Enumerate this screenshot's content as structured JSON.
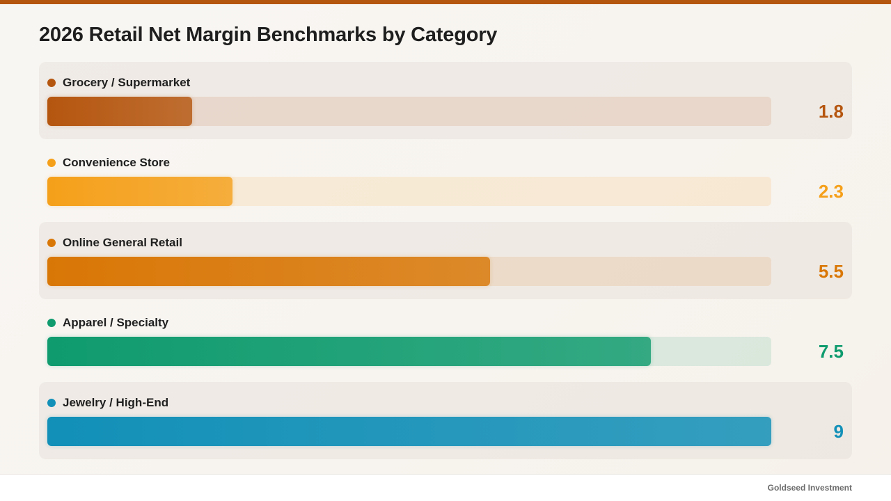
{
  "header": {
    "title": "2026 Retail Net Margin Benchmarks by Category",
    "accent_color": "#b5560f"
  },
  "chart_data": {
    "type": "bar",
    "orientation": "horizontal",
    "title": "2026 Retail Net Margin Benchmarks by Category",
    "categories": [
      "Grocery / Supermarket",
      "Convenience Store",
      "Online General Retail",
      "Apparel / Specialty",
      "Jewelry / High-End"
    ],
    "values": [
      1.8,
      2.3,
      5.5,
      7.5,
      9
    ],
    "value_labels": [
      "1.8",
      "2.3",
      "5.5",
      "7.5",
      "9"
    ],
    "colors": [
      "#b5560f",
      "#f5a01a",
      "#d97706",
      "#0f9b6e",
      "#1290b8"
    ],
    "xlim": [
      0,
      9
    ],
    "grid": false,
    "legend": "none"
  },
  "footer": {
    "brand": "Goldseed Investment"
  }
}
